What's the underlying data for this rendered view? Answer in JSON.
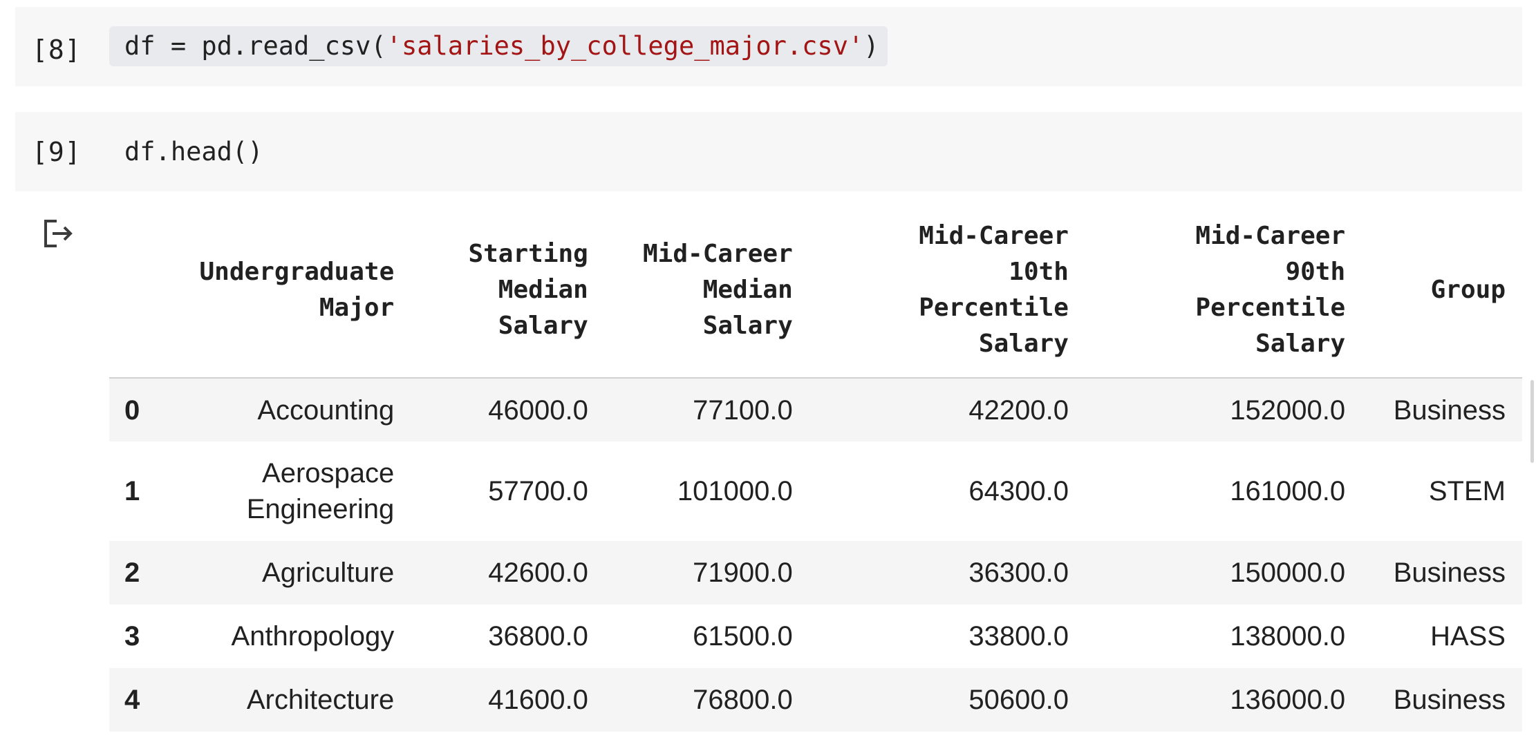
{
  "cells": [
    {
      "prompt": "[8]",
      "code_prefix": "df = pd.read_csv(",
      "code_string": "'salaries_by_college_major.csv'",
      "code_suffix": ")"
    },
    {
      "prompt": "[9]",
      "code": "df.head()"
    }
  ],
  "output": {
    "icon": "output-redirect-icon",
    "table": {
      "columns": [
        "",
        "Undergraduate Major",
        "Starting Median Salary",
        "Mid-Career Median Salary",
        "Mid-Career 10th Percentile Salary",
        "Mid-Career 90th Percentile Salary",
        "Group"
      ],
      "rows": [
        {
          "index": "0",
          "major": "Accounting",
          "start": "46000.0",
          "mid": "77100.0",
          "p10": "42200.0",
          "p90": "152000.0",
          "group": "Business"
        },
        {
          "index": "1",
          "major": "Aerospace Engineering",
          "start": "57700.0",
          "mid": "101000.0",
          "p10": "64300.0",
          "p90": "161000.0",
          "group": "STEM"
        },
        {
          "index": "2",
          "major": "Agriculture",
          "start": "42600.0",
          "mid": "71900.0",
          "p10": "36300.0",
          "p90": "150000.0",
          "group": "Business"
        },
        {
          "index": "3",
          "major": "Anthropology",
          "start": "36800.0",
          "mid": "61500.0",
          "p10": "33800.0",
          "p90": "138000.0",
          "group": "HASS"
        },
        {
          "index": "4",
          "major": "Architecture",
          "start": "41600.0",
          "mid": "76800.0",
          "p10": "50600.0",
          "p90": "136000.0",
          "group": "Business"
        }
      ]
    }
  },
  "colors": {
    "cell_background": "#f7f7f7",
    "code_highlight": "#e8eaed",
    "string_literal": "#a31515",
    "row_stripe": "#f5f5f5"
  }
}
